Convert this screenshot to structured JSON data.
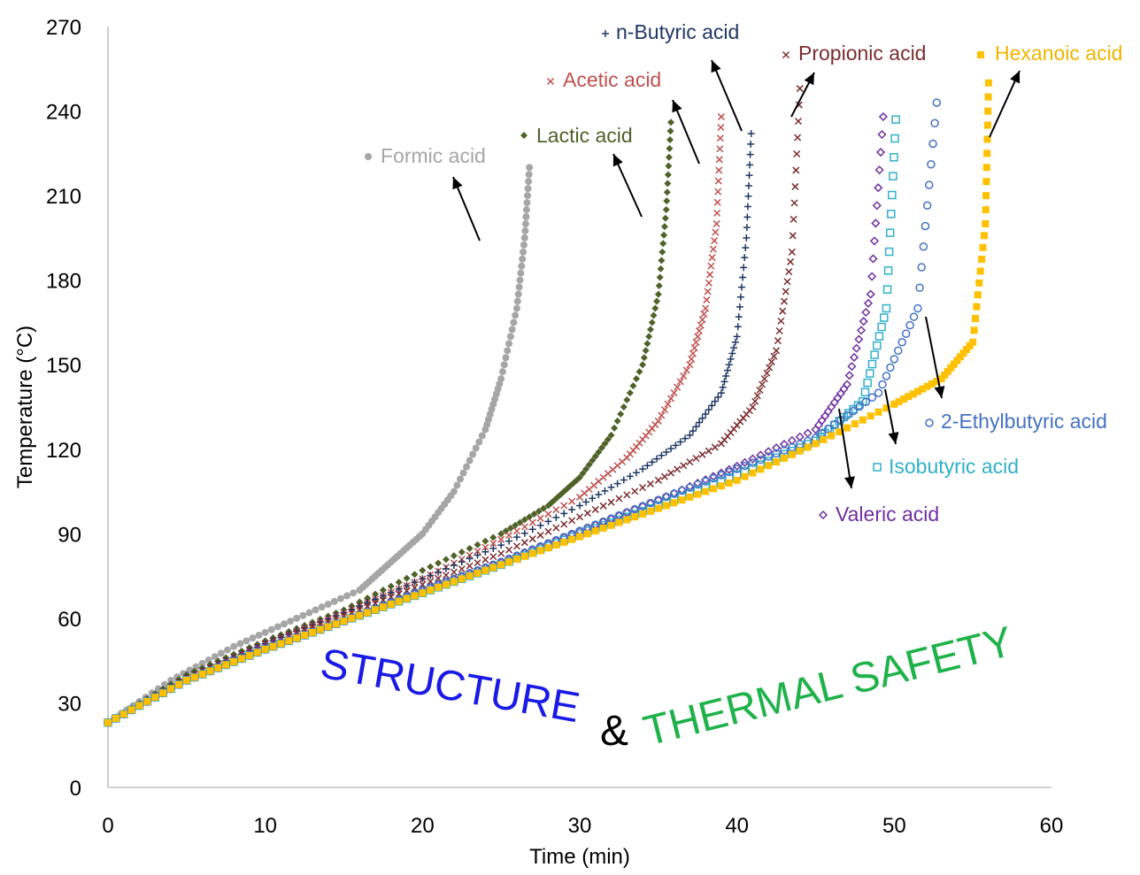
{
  "chart_data": {
    "type": "scatter",
    "xlabel": "Time (min)",
    "ylabel": "Temperature (°C)",
    "xlim": [
      0,
      60
    ],
    "ylim": [
      0,
      270
    ],
    "x_ticks": [
      0,
      10,
      20,
      30,
      40,
      50,
      60
    ],
    "y_ticks": [
      0,
      30,
      60,
      90,
      120,
      150,
      180,
      210,
      240,
      270
    ],
    "grid": false,
    "legend": "labels placed next to each curve with arrows",
    "series": [
      {
        "name": "Formic acid",
        "color": "#a6a6a6",
        "marker": "circle",
        "x": [
          0,
          4,
          8,
          12,
          16,
          18,
          20,
          22,
          24,
          25,
          26,
          26.5,
          26.8
        ],
        "y": [
          23,
          38,
          50,
          60,
          70,
          80,
          90,
          105,
          127,
          145,
          170,
          195,
          220
        ]
      },
      {
        "name": "Lactic acid",
        "color": "#4f6228",
        "marker": "diamond",
        "x": [
          0,
          5,
          10,
          15,
          20,
          25,
          28,
          30,
          32,
          34,
          35,
          35.5,
          35.8
        ],
        "y": [
          23,
          40,
          52,
          63,
          77,
          90,
          100,
          110,
          125,
          150,
          175,
          205,
          236
        ]
      },
      {
        "name": "Acetic acid",
        "color": "#c0504d",
        "marker": "x",
        "x": [
          0,
          5,
          10,
          15,
          20,
          25,
          30,
          33,
          35,
          37,
          38,
          38.7,
          39
        ],
        "y": [
          23,
          39,
          51,
          62,
          74,
          88,
          103,
          117,
          130,
          150,
          170,
          200,
          238
        ]
      },
      {
        "name": "n-Butyric acid",
        "color": "#1f3864",
        "marker": "plus",
        "x": [
          0,
          5,
          10,
          15,
          20,
          25,
          30,
          34,
          37,
          39,
          40,
          40.6,
          40.9
        ],
        "y": [
          23,
          39,
          51,
          62,
          74,
          86,
          100,
          113,
          125,
          140,
          160,
          195,
          232
        ]
      },
      {
        "name": "Propionic acid",
        "color": "#7b2c2c",
        "marker": "x",
        "x": [
          0,
          5,
          10,
          15,
          20,
          25,
          30,
          35,
          39,
          41,
          42.5,
          43.5,
          44
        ],
        "y": [
          23,
          39,
          51,
          61,
          72,
          83,
          96,
          109,
          122,
          135,
          155,
          190,
          248
        ]
      },
      {
        "name": "Valeric acid",
        "color": "#7030a0",
        "marker": "diamond-open",
        "x": [
          0,
          5,
          10,
          15,
          20,
          25,
          30,
          35,
          40,
          45,
          47,
          48.5,
          49.3
        ],
        "y": [
          23,
          38,
          50,
          59,
          70,
          80,
          91,
          102,
          114,
          127,
          143,
          175,
          238
        ]
      },
      {
        "name": "Isobutyric acid",
        "color": "#31b0c8",
        "marker": "square-open",
        "x": [
          0,
          5,
          10,
          15,
          20,
          25,
          30,
          35,
          40,
          45,
          48,
          49.5,
          50.1
        ],
        "y": [
          23,
          38,
          49,
          59,
          69,
          79,
          90,
          100,
          111,
          123,
          137,
          170,
          237
        ]
      },
      {
        "name": "2-Ethylbutyric acid",
        "color": "#4472c4",
        "marker": "circle-open",
        "x": [
          0,
          5,
          10,
          15,
          20,
          25,
          30,
          35,
          40,
          45,
          49,
          51.5,
          52.7
        ],
        "y": [
          23,
          38,
          49,
          59,
          70,
          80,
          91,
          102,
          113,
          124,
          140,
          170,
          243
        ]
      },
      {
        "name": "Hexanoic acid",
        "color": "#ffc000",
        "marker": "square",
        "x": [
          0,
          5,
          10,
          15,
          20,
          25,
          30,
          35,
          40,
          45,
          50,
          53,
          55,
          55.8,
          56
        ],
        "y": [
          23,
          38,
          49,
          59,
          69,
          79,
          89,
          99,
          109,
          122,
          136,
          145,
          158,
          200,
          250
        ]
      }
    ],
    "annotation": {
      "part1": "STRUCTURE",
      "part2": "&",
      "part3": "THERMAL SAFETY",
      "color1": "#1a1ae6",
      "color2": "#000000",
      "color3": "#1fb24a"
    }
  }
}
